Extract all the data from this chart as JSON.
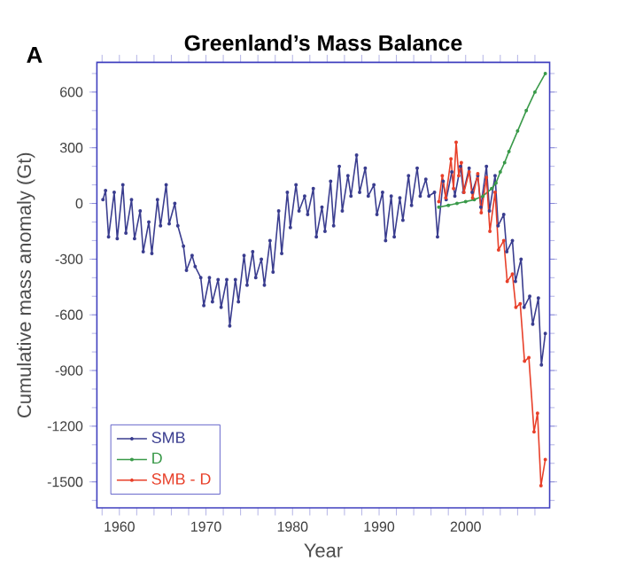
{
  "chart_data": {
    "type": "line",
    "title": "Greenland’s Mass Balance",
    "xlabel": "Year",
    "ylabel": "Cumulative mass anomaly (Gt)",
    "annotations": [
      "A"
    ],
    "xlim": [
      1957.4,
      2009.7
    ],
    "ylim": [
      -1640,
      760
    ],
    "xticks": [
      {
        "value": 1958,
        "label": null
      },
      1960,
      {
        "value": 1962,
        "label": null
      },
      {
        "value": 1964,
        "label": null
      },
      {
        "value": 1966,
        "label": null
      },
      {
        "value": 1968,
        "label": null
      },
      1970,
      {
        "value": 1972,
        "label": null
      },
      {
        "value": 1974,
        "label": null
      },
      {
        "value": 1976,
        "label": null
      },
      {
        "value": 1978,
        "label": null
      },
      1980,
      {
        "value": 1982,
        "label": null
      },
      {
        "value": 1984,
        "label": null
      },
      {
        "value": 1986,
        "label": null
      },
      {
        "value": 1988,
        "label": null
      },
      1990,
      {
        "value": 1992,
        "label": null
      },
      {
        "value": 1994,
        "label": null
      },
      {
        "value": 1996,
        "label": null
      },
      {
        "value": 1998,
        "label": null
      },
      2000,
      {
        "value": 2002,
        "label": null
      },
      {
        "value": 2004,
        "label": null
      },
      {
        "value": 2006,
        "label": null
      },
      {
        "value": 2008,
        "label": null
      }
    ],
    "yticks": [
      -1500,
      -1200,
      -900,
      -600,
      -300,
      0,
      300,
      600
    ],
    "legend": "bottom left",
    "marker": "circle",
    "line_style": "solid",
    "grid": false,
    "series": [
      {
        "name": "SMB",
        "color": "#3a3d8f",
        "x": [
          1958.1,
          1958.4,
          1958.75,
          1959.4,
          1959.75,
          1960.4,
          1960.75,
          1961.4,
          1961.75,
          1962.4,
          1962.75,
          1963.4,
          1963.75,
          1964.4,
          1964.75,
          1965.4,
          1965.75,
          1966.4,
          1966.75,
          1967.4,
          1967.75,
          1968.4,
          1968.75,
          1969.4,
          1969.75,
          1970.4,
          1970.75,
          1971.4,
          1971.75,
          1972.4,
          1972.75,
          1973.4,
          1973.75,
          1974.4,
          1974.75,
          1975.4,
          1975.75,
          1976.4,
          1976.75,
          1977.4,
          1977.75,
          1978.4,
          1978.75,
          1979.4,
          1979.75,
          1980.4,
          1980.75,
          1981.4,
          1981.75,
          1982.4,
          1982.75,
          1983.4,
          1983.75,
          1984.4,
          1984.75,
          1985.4,
          1985.75,
          1986.4,
          1986.75,
          1987.4,
          1987.75,
          1988.4,
          1988.75,
          1989.4,
          1989.75,
          1990.4,
          1990.75,
          1991.4,
          1991.75,
          1992.4,
          1992.75,
          1993.4,
          1993.75,
          1994.4,
          1994.75,
          1995.4,
          1995.75,
          1996.4,
          1996.75,
          1997.4,
          1997.75,
          1998.4,
          1998.75,
          1999.4,
          1999.75,
          2000.4,
          2000.75,
          2001.4,
          2001.75,
          2002.4,
          2002.75,
          2003.4,
          2003.75,
          2004.4,
          2004.75,
          2005.4,
          2005.75,
          2006.4,
          2006.75,
          2007.4,
          2007.75,
          2008.4,
          2008.75,
          2009.2
        ],
        "values": [
          20,
          70,
          -180,
          60,
          -190,
          100,
          -160,
          20,
          -190,
          -40,
          -260,
          -100,
          -270,
          20,
          -120,
          100,
          -110,
          0,
          -120,
          -230,
          -360,
          -280,
          -340,
          -400,
          -550,
          -400,
          -530,
          -410,
          -560,
          -410,
          -660,
          -410,
          -530,
          -280,
          -440,
          -260,
          -400,
          -300,
          -440,
          -200,
          -370,
          -40,
          -270,
          60,
          -130,
          100,
          -40,
          40,
          -60,
          80,
          -180,
          -20,
          -150,
          120,
          -120,
          200,
          -40,
          150,
          40,
          260,
          60,
          190,
          40,
          100,
          -60,
          60,
          -200,
          40,
          -180,
          30,
          -90,
          150,
          -10,
          190,
          40,
          130,
          40,
          60,
          -180,
          120,
          20,
          170,
          40,
          200,
          60,
          190,
          60,
          150,
          -20,
          200,
          -40,
          150,
          -120,
          -60,
          -260,
          -200,
          -420,
          -300,
          -560,
          -500,
          -650,
          -510,
          -870,
          -700
        ]
      },
      {
        "name": "D",
        "color": "#3a9a4a",
        "x": [
          1996.9,
          1998,
          1999,
          2000,
          2001,
          2002,
          2003,
          2003.5,
          2004,
          2004.5,
          2005,
          2006,
          2007,
          2008,
          2009.2
        ],
        "values": [
          -20,
          -10,
          0,
          10,
          20,
          40,
          80,
          110,
          170,
          220,
          280,
          390,
          500,
          600,
          700
        ]
      },
      {
        "name": "SMB - D",
        "color": "#e8402a",
        "x": [
          1996.9,
          1997.3,
          1997.7,
          1998.3,
          1998.6,
          1998.9,
          1999.2,
          1999.5,
          1999.8,
          2000.4,
          2000.8,
          2001.4,
          2001.8,
          2002.4,
          2002.8,
          2003.4,
          2003.8,
          2004.4,
          2004.8,
          2005.4,
          2005.8,
          2006.3,
          2006.8,
          2007.3,
          2007.9,
          2008.3,
          2008.7,
          2009.2
        ],
        "values": [
          10,
          150,
          30,
          240,
          80,
          330,
          150,
          220,
          60,
          170,
          30,
          160,
          -50,
          140,
          -150,
          60,
          -250,
          -200,
          -420,
          -380,
          -560,
          -540,
          -850,
          -830,
          -1230,
          -1130,
          -1520,
          -1380
        ]
      }
    ]
  }
}
